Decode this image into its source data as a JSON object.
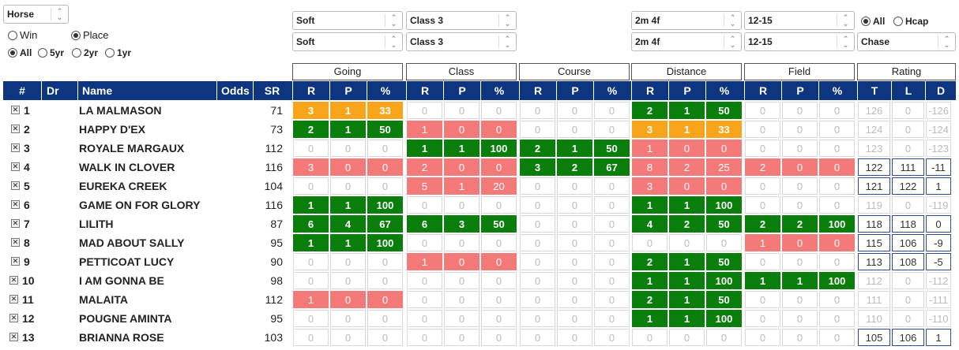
{
  "filters": {
    "horse_select": "Horse",
    "win_label": "Win",
    "place_label": "Place",
    "place_selected": true,
    "periods": [
      {
        "label": "All",
        "selected": true
      },
      {
        "label": "5yr",
        "selected": false
      },
      {
        "label": "2yr",
        "selected": false
      },
      {
        "label": "1yr",
        "selected": false
      }
    ],
    "going_1": "Soft",
    "going_2": "Soft",
    "class_1": "Class 3",
    "class_2": "Class 3",
    "distance_1": "2m 4f",
    "distance_2": "2m 4f",
    "field_1": "12-15",
    "field_2": "12-15",
    "race_all_label": "All",
    "race_hcap_label": "Hcap",
    "race_type": "Chase"
  },
  "groups": [
    "Going",
    "Class",
    "Course",
    "Distance",
    "Field",
    "Rating"
  ],
  "columns": {
    "num": "#",
    "dr": "Dr",
    "name": "Name",
    "odds": "Odds",
    "sr": "SR",
    "r": "R",
    "p": "P",
    "pct": "%",
    "t": "T",
    "l": "L",
    "d": "D"
  },
  "rows": [
    {
      "num": "1",
      "name": "LA MALMASON",
      "sr": "71",
      "going": [
        "3",
        "1",
        "33",
        "o"
      ],
      "class": [
        "0",
        "0",
        "0",
        ""
      ],
      "course": [
        "0",
        "0",
        "0",
        ""
      ],
      "distance": [
        "2",
        "1",
        "50",
        "g"
      ],
      "field": [
        "0",
        "0",
        "0",
        ""
      ],
      "rating": [
        "126",
        "0",
        "-126",
        ""
      ]
    },
    {
      "num": "2",
      "name": "HAPPY D'EX",
      "sr": "73",
      "going": [
        "2",
        "1",
        "50",
        "g"
      ],
      "class": [
        "1",
        "0",
        "0",
        "r"
      ],
      "course": [
        "0",
        "0",
        "0",
        ""
      ],
      "distance": [
        "3",
        "1",
        "33",
        "o"
      ],
      "field": [
        "0",
        "0",
        "0",
        ""
      ],
      "rating": [
        "124",
        "0",
        "-124",
        ""
      ]
    },
    {
      "num": "3",
      "name": "ROYALE MARGAUX",
      "sr": "112",
      "going": [
        "0",
        "0",
        "0",
        ""
      ],
      "class": [
        "1",
        "1",
        "100",
        "g"
      ],
      "course": [
        "2",
        "1",
        "50",
        "g"
      ],
      "distance": [
        "1",
        "0",
        "0",
        "r"
      ],
      "field": [
        "0",
        "0",
        "0",
        ""
      ],
      "rating": [
        "123",
        "0",
        "-123",
        ""
      ]
    },
    {
      "num": "4",
      "name": "WALK IN CLOVER",
      "sr": "116",
      "going": [
        "3",
        "0",
        "0",
        "r"
      ],
      "class": [
        "2",
        "0",
        "0",
        "r"
      ],
      "course": [
        "3",
        "2",
        "67",
        "g"
      ],
      "distance": [
        "8",
        "2",
        "25",
        "r"
      ],
      "field": [
        "2",
        "0",
        "0",
        "r"
      ],
      "rating": [
        "122",
        "111",
        "-11",
        "bl"
      ]
    },
    {
      "num": "5",
      "name": "EUREKA CREEK",
      "sr": "104",
      "going": [
        "0",
        "0",
        "0",
        ""
      ],
      "class": [
        "5",
        "1",
        "20",
        "r"
      ],
      "course": [
        "0",
        "0",
        "0",
        ""
      ],
      "distance": [
        "3",
        "0",
        "0",
        "r"
      ],
      "field": [
        "0",
        "0",
        "0",
        ""
      ],
      "rating": [
        "121",
        "122",
        "1",
        "bl"
      ]
    },
    {
      "num": "6",
      "name": "GAME ON FOR GLORY",
      "sr": "116",
      "going": [
        "1",
        "1",
        "100",
        "g"
      ],
      "class": [
        "0",
        "0",
        "0",
        ""
      ],
      "course": [
        "0",
        "0",
        "0",
        ""
      ],
      "distance": [
        "1",
        "1",
        "100",
        "g"
      ],
      "field": [
        "0",
        "0",
        "0",
        ""
      ],
      "rating": [
        "119",
        "0",
        "-119",
        ""
      ]
    },
    {
      "num": "7",
      "name": "LILITH",
      "sr": "87",
      "going": [
        "6",
        "4",
        "67",
        "g"
      ],
      "class": [
        "6",
        "3",
        "50",
        "g"
      ],
      "course": [
        "0",
        "0",
        "0",
        ""
      ],
      "distance": [
        "4",
        "2",
        "50",
        "g"
      ],
      "field": [
        "2",
        "2",
        "100",
        "g"
      ],
      "rating": [
        "118",
        "118",
        "0",
        "bl"
      ]
    },
    {
      "num": "8",
      "name": "MAD ABOUT SALLY",
      "sr": "95",
      "going": [
        "1",
        "1",
        "100",
        "g"
      ],
      "class": [
        "0",
        "0",
        "0",
        ""
      ],
      "course": [
        "0",
        "0",
        "0",
        ""
      ],
      "distance": [
        "0",
        "0",
        "0",
        ""
      ],
      "field": [
        "1",
        "0",
        "0",
        "r"
      ],
      "rating": [
        "115",
        "106",
        "-9",
        "bl"
      ]
    },
    {
      "num": "9",
      "name": "PETTICOAT LUCY",
      "sr": "90",
      "going": [
        "0",
        "0",
        "0",
        ""
      ],
      "class": [
        "1",
        "0",
        "0",
        "r"
      ],
      "course": [
        "0",
        "0",
        "0",
        ""
      ],
      "distance": [
        "2",
        "1",
        "50",
        "g"
      ],
      "field": [
        "0",
        "0",
        "0",
        ""
      ],
      "rating": [
        "113",
        "108",
        "-5",
        "bl"
      ]
    },
    {
      "num": "10",
      "name": "I AM GONNA BE",
      "sr": "98",
      "going": [
        "0",
        "0",
        "0",
        ""
      ],
      "class": [
        "0",
        "0",
        "0",
        ""
      ],
      "course": [
        "0",
        "0",
        "0",
        ""
      ],
      "distance": [
        "1",
        "1",
        "100",
        "g"
      ],
      "field": [
        "1",
        "1",
        "100",
        "g"
      ],
      "rating": [
        "112",
        "0",
        "-112",
        ""
      ]
    },
    {
      "num": "11",
      "name": "MALAITA",
      "sr": "112",
      "going": [
        "1",
        "0",
        "0",
        "r"
      ],
      "class": [
        "0",
        "0",
        "0",
        ""
      ],
      "course": [
        "0",
        "0",
        "0",
        ""
      ],
      "distance": [
        "2",
        "1",
        "50",
        "g"
      ],
      "field": [
        "0",
        "0",
        "0",
        ""
      ],
      "rating": [
        "111",
        "0",
        "-111",
        ""
      ]
    },
    {
      "num": "12",
      "name": "POUGNE AMINTA",
      "sr": "95",
      "going": [
        "0",
        "0",
        "0",
        ""
      ],
      "class": [
        "0",
        "0",
        "0",
        ""
      ],
      "course": [
        "0",
        "0",
        "0",
        ""
      ],
      "distance": [
        "1",
        "1",
        "100",
        "g"
      ],
      "field": [
        "0",
        "0",
        "0",
        ""
      ],
      "rating": [
        "110",
        "0",
        "-110",
        ""
      ]
    },
    {
      "num": "13",
      "name": "BRIANNA ROSE",
      "sr": "103",
      "going": [
        "0",
        "0",
        "0",
        ""
      ],
      "class": [
        "0",
        "0",
        "0",
        ""
      ],
      "course": [
        "0",
        "0",
        "0",
        ""
      ],
      "distance": [
        "0",
        "0",
        "0",
        ""
      ],
      "field": [
        "0",
        "0",
        "0",
        ""
      ],
      "rating": [
        "105",
        "106",
        "1",
        "bl"
      ]
    }
  ],
  "colors": {
    "header": "#0d3580",
    "win_green": "#0a7e0a",
    "place_orange": "#f8a51b",
    "fail_red": "#f47a7a",
    "rating_border": "#2a4f8a"
  },
  "icons": {
    "remove": "close-box-icon",
    "select": "updown-arrows-icon"
  }
}
